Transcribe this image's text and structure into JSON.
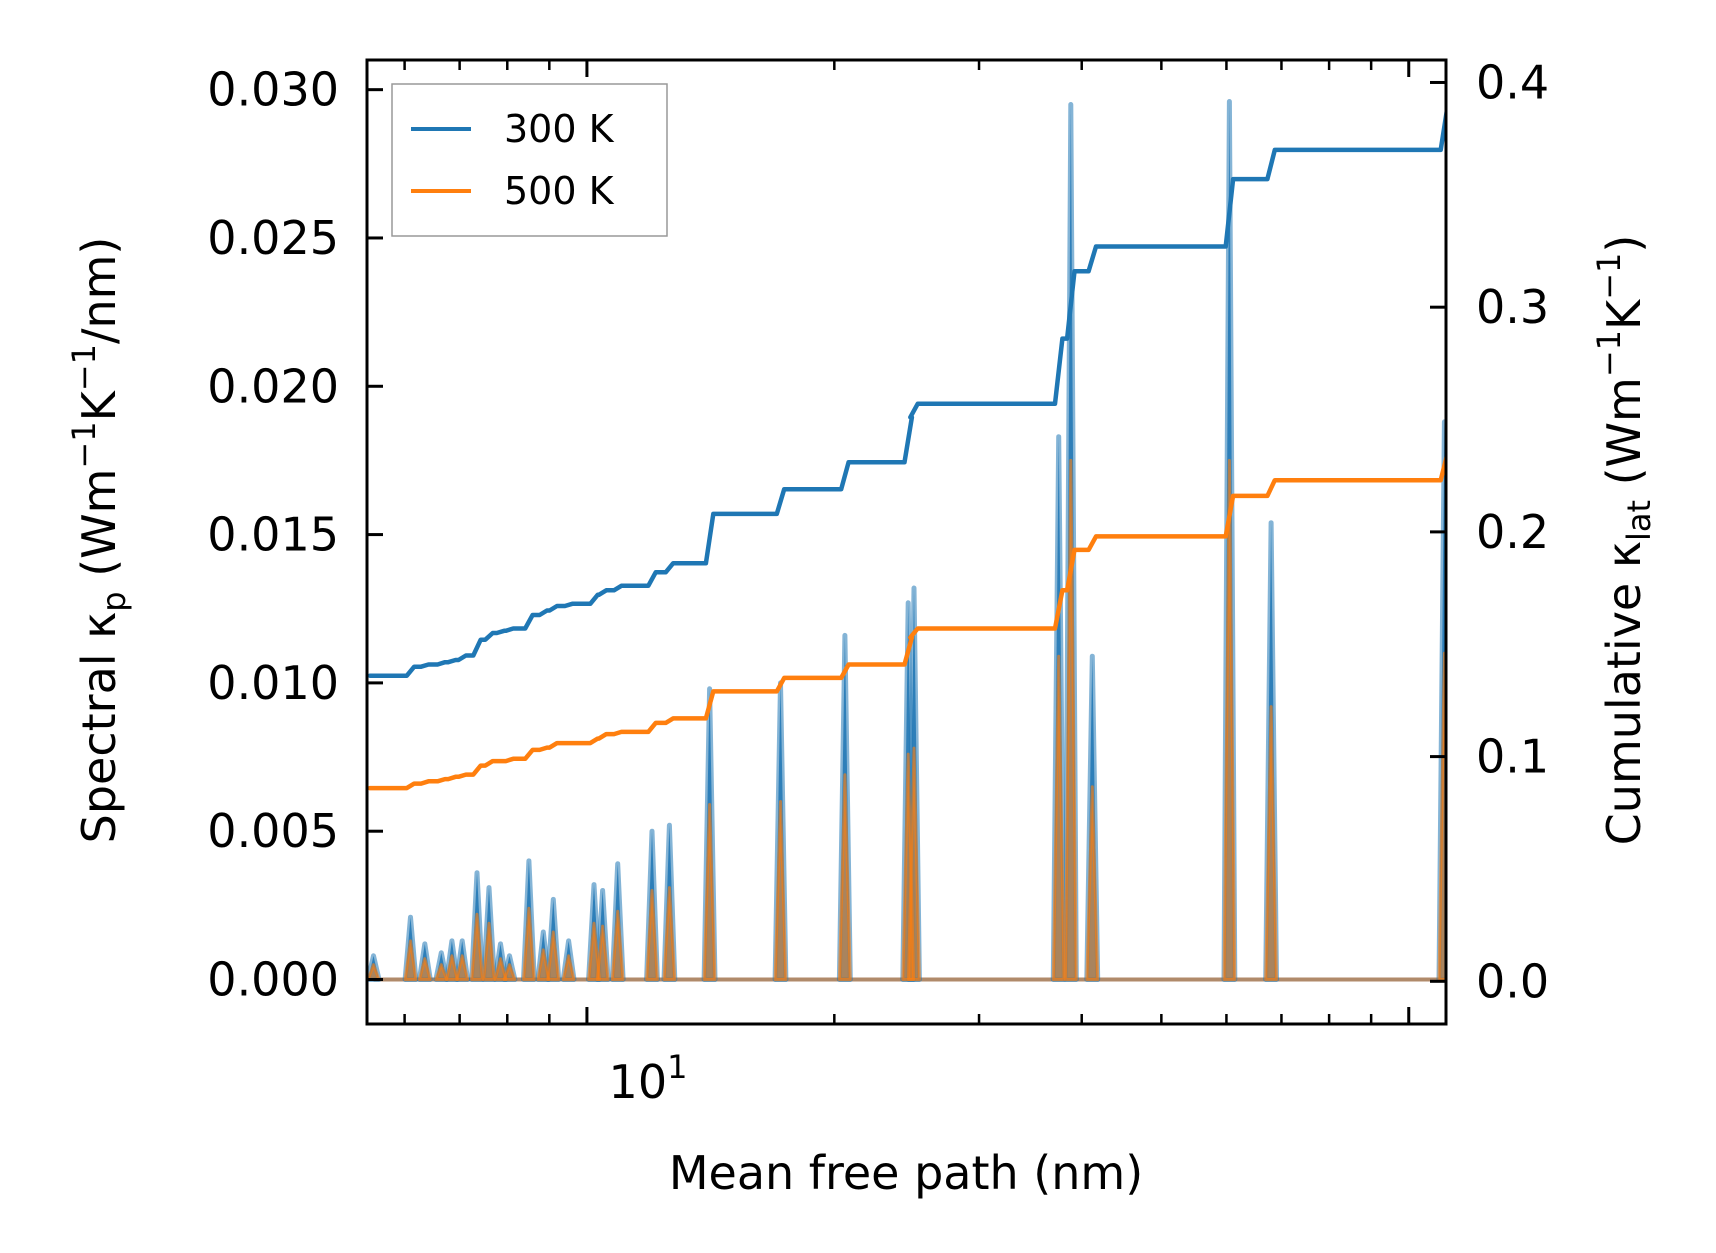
{
  "chart_data": {
    "type": "line",
    "title": "",
    "xlabel": "Mean free path (nm)",
    "xscale": "log",
    "xlim": [
      5.4,
      111
    ],
    "x_ticks": [
      {
        "value": 10,
        "label_base": "10",
        "label_exp": "1"
      }
    ],
    "left_axis": {
      "label": {
        "prefix": "Spectral κ",
        "sub": "p",
        "units_open": " (Wm",
        "exp1": "−1",
        "mid": "K",
        "exp2": "−1",
        "suffix": "/nm)"
      },
      "ylim": [
        -0.0015,
        0.031
      ],
      "ticks": [
        0.0,
        0.005,
        0.01,
        0.015,
        0.02,
        0.025,
        0.03
      ],
      "tick_labels": [
        "0.000",
        "0.005",
        "0.010",
        "0.015",
        "0.020",
        "0.025",
        "0.030"
      ]
    },
    "right_axis": {
      "label": {
        "prefix": "Cumulative κ",
        "sub": "lat",
        "units_open": " (Wm",
        "exp1": "−1",
        "mid": "K",
        "exp2": "−1",
        "suffix": ")"
      },
      "ylim": [
        -0.019,
        0.41
      ],
      "ticks": [
        0.0,
        0.1,
        0.2,
        0.3,
        0.4
      ],
      "tick_labels": [
        "0.0",
        "0.1",
        "0.2",
        "0.3",
        "0.4"
      ]
    },
    "legend": {
      "position": "top-left",
      "entries": [
        "300 K",
        "500 K"
      ]
    },
    "colors": {
      "300 K": "#1f77b4",
      "500 K": "#ff7f0e"
    },
    "spectral_peaks": [
      {
        "x": 5.5,
        "v300": 0.0008,
        "v500": 0.0005
      },
      {
        "x": 6.1,
        "v300": 0.0021,
        "v500": 0.0013
      },
      {
        "x": 6.35,
        "v300": 0.0012,
        "v500": 0.0007
      },
      {
        "x": 6.65,
        "v300": 0.0009,
        "v500": 0.0005
      },
      {
        "x": 6.85,
        "v300": 0.0013,
        "v500": 0.0008
      },
      {
        "x": 7.05,
        "v300": 0.0013,
        "v500": 0.0008
      },
      {
        "x": 7.35,
        "v300": 0.0036,
        "v500": 0.0022
      },
      {
        "x": 7.6,
        "v300": 0.0031,
        "v500": 0.0019
      },
      {
        "x": 7.85,
        "v300": 0.0012,
        "v500": 0.0007
      },
      {
        "x": 8.05,
        "v300": 0.0008,
        "v500": 0.0005
      },
      {
        "x": 8.5,
        "v300": 0.004,
        "v500": 0.0024
      },
      {
        "x": 8.85,
        "v300": 0.0016,
        "v500": 0.001
      },
      {
        "x": 9.1,
        "v300": 0.0027,
        "v500": 0.0016
      },
      {
        "x": 9.5,
        "v300": 0.0013,
        "v500": 0.0008
      },
      {
        "x": 10.2,
        "v300": 0.0032,
        "v500": 0.0019
      },
      {
        "x": 10.45,
        "v300": 0.003,
        "v500": 0.0018
      },
      {
        "x": 10.9,
        "v300": 0.0039,
        "v500": 0.0023
      },
      {
        "x": 12.0,
        "v300": 0.005,
        "v500": 0.003
      },
      {
        "x": 12.6,
        "v300": 0.0052,
        "v500": 0.0031
      },
      {
        "x": 14.1,
        "v300": 0.0098,
        "v500": 0.0059
      },
      {
        "x": 17.2,
        "v300": 0.01,
        "v500": 0.006
      },
      {
        "x": 20.6,
        "v300": 0.0116,
        "v500": 0.0069
      },
      {
        "x": 24.6,
        "v300": 0.0127,
        "v500": 0.0076
      },
      {
        "x": 25.0,
        "v300": 0.0132,
        "v500": 0.0078
      },
      {
        "x": 37.5,
        "v300": 0.0183,
        "v500": 0.0109
      },
      {
        "x": 38.8,
        "v300": 0.0295,
        "v500": 0.0175
      },
      {
        "x": 41.2,
        "v300": 0.0109,
        "v500": 0.0065
      },
      {
        "x": 60.5,
        "v300": 0.0296,
        "v500": 0.0175
      },
      {
        "x": 68.0,
        "v300": 0.0154,
        "v500": 0.0092
      },
      {
        "x": 110.5,
        "v300": 0.0188,
        "v500": 0.011
      }
    ],
    "series": [
      {
        "name": "300 K",
        "axis": "right",
        "x": [
          5.5,
          6.1,
          6.35,
          6.65,
          6.85,
          7.05,
          7.35,
          7.6,
          7.85,
          8.05,
          8.5,
          8.85,
          9.1,
          9.5,
          10.2,
          10.45,
          10.9,
          12.0,
          12.6,
          14.1,
          17.2,
          20.6,
          24.6,
          25.0,
          37.5,
          38.8,
          41.2,
          60.5,
          68.0,
          110.5
        ],
        "y": [
          0.136,
          0.14,
          0.141,
          0.142,
          0.143,
          0.145,
          0.152,
          0.155,
          0.156,
          0.157,
          0.163,
          0.165,
          0.167,
          0.168,
          0.172,
          0.174,
          0.176,
          0.182,
          0.186,
          0.208,
          0.219,
          0.231,
          0.251,
          0.257,
          0.286,
          0.316,
          0.327,
          0.357,
          0.37,
          0.391
        ]
      },
      {
        "name": "500 K",
        "axis": "right",
        "x": [
          5.5,
          6.1,
          6.35,
          6.65,
          6.85,
          7.05,
          7.35,
          7.6,
          7.85,
          8.05,
          8.5,
          8.85,
          9.1,
          9.5,
          10.2,
          10.45,
          10.9,
          12.0,
          12.6,
          14.1,
          17.2,
          20.6,
          24.6,
          25.0,
          37.5,
          38.8,
          41.2,
          60.5,
          68.0,
          110.5
        ],
        "y": [
          0.086,
          0.088,
          0.089,
          0.09,
          0.091,
          0.092,
          0.096,
          0.098,
          0.098,
          0.099,
          0.103,
          0.104,
          0.106,
          0.106,
          0.108,
          0.11,
          0.111,
          0.115,
          0.117,
          0.129,
          0.135,
          0.141,
          0.153,
          0.157,
          0.174,
          0.192,
          0.198,
          0.216,
          0.223,
          0.236
        ]
      }
    ]
  }
}
